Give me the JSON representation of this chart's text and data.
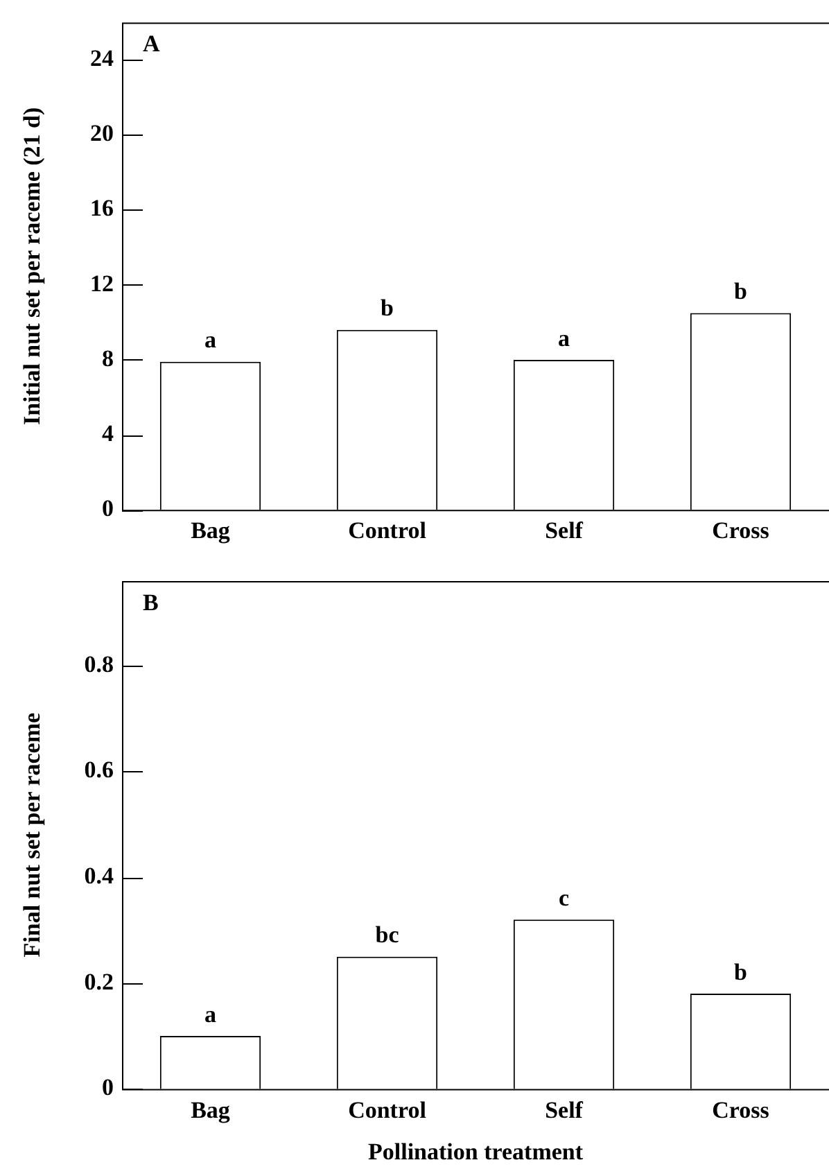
{
  "chart_data": [
    {
      "type": "bar",
      "title": "A",
      "ylabel": "Initial nut set per raceme (21 d)",
      "categories": [
        "Bag",
        "Control",
        "Self",
        "Cross"
      ],
      "values": [
        7.9,
        9.6,
        8.0,
        10.5
      ],
      "color": "#ffffff",
      "ylim": [
        0,
        26
      ],
      "yticks": [
        0,
        4,
        8,
        12,
        16,
        20,
        24
      ],
      "grid": false,
      "legend": false,
      "annotations": [
        {
          "text": "a",
          "x": "Bag",
          "y": 7.9
        },
        {
          "text": "b",
          "x": "Control",
          "y": 9.6
        },
        {
          "text": "a",
          "x": "Self",
          "y": 8.0
        },
        {
          "text": "b",
          "x": "Cross",
          "y": 10.5
        }
      ]
    },
    {
      "type": "bar",
      "title": "B",
      "xlabel": "Pollination treatment",
      "ylabel": "Final nut set per raceme",
      "categories": [
        "Bag",
        "Control",
        "Self",
        "Cross"
      ],
      "values": [
        0.1,
        0.25,
        0.32,
        0.18
      ],
      "color": "#ffffff",
      "ylim": [
        0,
        0.96
      ],
      "yticks": [
        0,
        0.2,
        0.4,
        0.6,
        0.8
      ],
      "grid": false,
      "legend": false,
      "annotations": [
        {
          "text": "a",
          "x": "Bag",
          "y": 0.1
        },
        {
          "text": "bc",
          "x": "Control",
          "y": 0.25
        },
        {
          "text": "c",
          "x": "Self",
          "y": 0.32
        },
        {
          "text": "b",
          "x": "Cross",
          "y": 0.18
        }
      ]
    }
  ]
}
